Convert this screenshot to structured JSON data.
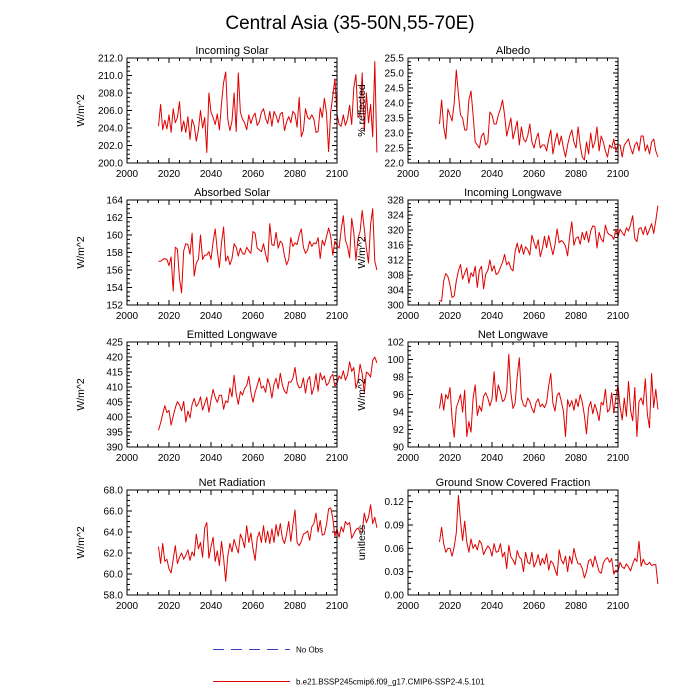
{
  "title": "Central Asia (35-50N,55-70E)",
  "legend": {
    "obs_label": "No Obs",
    "model_label": "b.e21.BSSP245cmip6.f09_g17.CMIP6-SSP2-4.5.101",
    "obs_color": "#3b3bbf",
    "model_color": "#e00000"
  },
  "chart_data": [
    {
      "type": "line",
      "name": "incoming-solar",
      "title": "Incoming Solar",
      "ylabel": "W/m^2",
      "xlim": [
        2000,
        2100
      ],
      "ylim": [
        200,
        212
      ],
      "xticks": [
        "2000",
        "2020",
        "2040",
        "2060",
        "2080",
        "2100"
      ],
      "yticks": [
        "200.0",
        "202.0",
        "204.0",
        "206.0",
        "208.0",
        "210.0",
        "212.0"
      ],
      "x_start": 2015,
      "color": "#e00000",
      "values": [
        204.2,
        206.7,
        203.8,
        204.9,
        203.9,
        205.5,
        203.5,
        206.2,
        204.6,
        205.2,
        207.0,
        203.6,
        204.8,
        203.5,
        205.3,
        202.7,
        205.0,
        204.3,
        202.5,
        203.8,
        206.0,
        204.0,
        205.2,
        201.2,
        208.0,
        205.8,
        205.2,
        204.4,
        205.6,
        203.8,
        206.8,
        209.2,
        210.4,
        205.0,
        203.7,
        204.8,
        208.0,
        203.6,
        210.3,
        205.8,
        205.0,
        204.6,
        203.8,
        205.5,
        204.5,
        205.3,
        205.7,
        204.3,
        204.7,
        205.8,
        206.2,
        205.1,
        204.5,
        205.9,
        204.2,
        205.9,
        205.4,
        204.6,
        205.6,
        205.8,
        203.7,
        204.7,
        205.3,
        204.6,
        205.9,
        205.6,
        204.1,
        207.5,
        203.0,
        203.7,
        206.2,
        205.2,
        205.0,
        205.5,
        205.0,
        203.5,
        203.6,
        206.3,
        205.2,
        207.4,
        205.7,
        201.3,
        205.8,
        207.7,
        209.6,
        205.6,
        204.4,
        204.2,
        205.5,
        204.3,
        205.0,
        206.6,
        204.4,
        208.6,
        210.1,
        205.2,
        205.5,
        210.3,
        203.6,
        208.0,
        204.6,
        206.7,
        203.0,
        211.6,
        201.2
      ]
    },
    {
      "type": "line",
      "name": "albedo",
      "title": "Albedo",
      "ylabel": "% reflected",
      "xlim": [
        2000,
        2100
      ],
      "ylim": [
        22,
        25.5
      ],
      "xticks": [
        "2000",
        "2020",
        "2040",
        "2060",
        "2080",
        "2100"
      ],
      "yticks": [
        "22.0",
        "22.5",
        "23.0",
        "23.5",
        "24.0",
        "24.5",
        "25.0",
        "25.5"
      ],
      "x_start": 2015,
      "color": "#e00000",
      "values": [
        23.3,
        24.1,
        23.2,
        22.8,
        23.8,
        23.6,
        23.4,
        24.0,
        25.1,
        24.3,
        23.6,
        23.5,
        23.1,
        23.1,
        24.1,
        24.4,
        23.6,
        22.7,
        22.6,
        22.5,
        22.9,
        23.0,
        22.6,
        22.7,
        23.7,
        23.6,
        23.3,
        23.3,
        23.6,
        23.8,
        24.1,
        23.6,
        22.9,
        23.2,
        23.5,
        22.8,
        23.1,
        23.4,
        22.6,
        23.2,
        22.8,
        22.7,
        22.9,
        23.3,
        22.7,
        22.5,
        22.8,
        23.0,
        22.5,
        22.6,
        22.6,
        22.4,
        22.8,
        23.1,
        22.3,
        22.7,
        23.0,
        22.6,
        22.9,
        22.5,
        22.2,
        22.6,
        22.9,
        23.1,
        22.7,
        22.5,
        23.2,
        22.6,
        22.2,
        22.1,
        22.7,
        22.3,
        23.0,
        22.5,
        22.7,
        23.2,
        22.4,
        22.9,
        22.7,
        22.4,
        22.2,
        22.6,
        22.5,
        22.8,
        22.4,
        22.6,
        22.6,
        22.2,
        22.6,
        22.7,
        22.8,
        22.5,
        22.3,
        22.6,
        22.7,
        22.4,
        22.9,
        22.9,
        22.4,
        22.6,
        22.3,
        22.7,
        22.8,
        22.4,
        22.2
      ]
    },
    {
      "type": "line",
      "name": "absorbed-solar",
      "title": "Absorbed Solar",
      "ylabel": "W/m^2",
      "xlim": [
        2000,
        2100
      ],
      "ylim": [
        152,
        164
      ],
      "xticks": [
        "2000",
        "2020",
        "2040",
        "2060",
        "2080",
        "2100"
      ],
      "yticks": [
        "152",
        "154",
        "156",
        "158",
        "160",
        "162",
        "164"
      ],
      "x_start": 2015,
      "color": "#e00000",
      "values": [
        157.0,
        157.0,
        157.2,
        157.3,
        157.2,
        156.5,
        157.5,
        153.6,
        158.6,
        158.4,
        155.0,
        153.4,
        158.2,
        159.0,
        158.9,
        157.8,
        160.2,
        155.3,
        156.8,
        157.2,
        160.0,
        157.2,
        157.7,
        157.7,
        158.1,
        157.2,
        159.2,
        160.7,
        158.2,
        156.3,
        159.1,
        160.9,
        157.0,
        157.6,
        156.6,
        157.3,
        159.0,
        158.6,
        157.6,
        158.5,
        157.9,
        157.8,
        158.6,
        158.2,
        157.9,
        160.4,
        160.2,
        158.5,
        158.3,
        158.1,
        159.0,
        157.8,
        156.9,
        161.3,
        158.9,
        158.8,
        160.3,
        158.5,
        159.3,
        159.0,
        157.6,
        156.6,
        157.2,
        159.7,
        158.7,
        159.1,
        158.9,
        160.0,
        160.7,
        158.6,
        157.9,
        158.3,
        159.3,
        158.7,
        159.1,
        159.0,
        159.7,
        157.3,
        159.4,
        158.8,
        159.8,
        160.8,
        159.9,
        157.7,
        159.3,
        158.8,
        158.5,
        160.6,
        162.2,
        159.4,
        158.7,
        157.4,
        161.9,
        160.3,
        157.1,
        159.6,
        160.4,
        162.8,
        160.7,
        158.5,
        156.8,
        161.2,
        163.0,
        157.0,
        156.0
      ]
    },
    {
      "type": "line",
      "name": "incoming-longwave",
      "title": "Incoming Longwave",
      "ylabel": "W/m^2",
      "xlim": [
        2000,
        2100
      ],
      "ylim": [
        300,
        328
      ],
      "xticks": [
        "2000",
        "2020",
        "2040",
        "2060",
        "2080",
        "2100"
      ],
      "yticks": [
        "300",
        "304",
        "308",
        "312",
        "316",
        "320",
        "324",
        "328"
      ],
      "x_start": 2015,
      "color": "#e00000",
      "values": [
        301.2,
        301.0,
        306.5,
        308.4,
        307.6,
        305.3,
        302.0,
        302.4,
        306.4,
        309.1,
        310.8,
        306.9,
        308.5,
        309.9,
        305.8,
        308.6,
        307.6,
        310.3,
        304.7,
        309.3,
        310.3,
        304.3,
        308.2,
        309.2,
        312.0,
        309.0,
        310.5,
        308.1,
        308.6,
        310.0,
        311.4,
        313.5,
        310.7,
        311.5,
        309.7,
        309.1,
        314.2,
        316.5,
        313.9,
        316.1,
        313.5,
        315.5,
        314.8,
        313.3,
        318.6,
        316.7,
        315.0,
        317.4,
        312.9,
        315.1,
        318.3,
        315.3,
        318.5,
        315.8,
        313.4,
        316.1,
        320.3,
        316.6,
        317.2,
        316.7,
        315.7,
        313.1,
        318.4,
        322.2,
        315.9,
        317.8,
        318.2,
        316.2,
        319.4,
        317.4,
        319.6,
        316.7,
        319.7,
        321.1,
        320.9,
        315.2,
        319.4,
        317.6,
        316.8,
        321.3,
        319.3,
        318.7,
        318.5,
        317.5,
        320.3,
        318.2,
        320.2,
        319.3,
        318.5,
        320.6,
        319.7,
        321.5,
        323.8,
        317.7,
        316.9,
        320.4,
        320.6,
        318.8,
        320.9,
        318.7,
        320.1,
        321.7,
        319.1,
        322.5,
        326.5
      ]
    },
    {
      "type": "line",
      "name": "emitted-longwave",
      "title": "Emitted Longwave",
      "ylabel": "W/m^2",
      "xlim": [
        2000,
        2100
      ],
      "ylim": [
        390,
        425
      ],
      "xticks": [
        "2000",
        "2020",
        "2040",
        "2060",
        "2080",
        "2100"
      ],
      "yticks": [
        "390",
        "395",
        "400",
        "405",
        "410",
        "415",
        "420",
        "425"
      ],
      "x_start": 2015,
      "color": "#e00000",
      "values": [
        395.6,
        398.0,
        401.0,
        403.8,
        401.5,
        402.2,
        397.3,
        400.3,
        403.1,
        405.1,
        404.0,
        402.1,
        405.2,
        398.3,
        402.0,
        399.7,
        404.2,
        406.2,
        403.5,
        404.5,
        406.7,
        402.3,
        404.5,
        406.6,
        401.6,
        405.6,
        409.2,
        406.5,
        404.9,
        407.2,
        407.3,
        402.6,
        405.4,
        404.8,
        409.7,
        406.7,
        413.9,
        407.7,
        404.2,
        408.5,
        407.3,
        409.5,
        410.5,
        413.6,
        408.3,
        404.9,
        408.2,
        410.5,
        413.1,
        409.6,
        410.3,
        408.2,
        412.8,
        410.6,
        406.3,
        410.9,
        412.9,
        409.4,
        414.6,
        410.6,
        408.6,
        407.8,
        411.7,
        411.6,
        412.9,
        416.5,
        411.4,
        409.7,
        410.0,
        413.0,
        408.0,
        412.3,
        413.5,
        407.5,
        409.8,
        414.4,
        408.6,
        414.7,
        412.4,
        413.7,
        410.5,
        411.3,
        413.4,
        414.2,
        410.3,
        411.2,
        413.7,
        412.7,
        415.4,
        412.3,
        413.9,
        418.4,
        415.2,
        416.5,
        409.6,
        412.1,
        417.6,
        414.4,
        408.1,
        415.0,
        414.4,
        413.3,
        418.9,
        420.0,
        418.0
      ]
    },
    {
      "type": "line",
      "name": "net-longwave",
      "title": "Net Longwave",
      "ylabel": "W/m^2",
      "xlim": [
        2000,
        2100
      ],
      "ylim": [
        90,
        102
      ],
      "xticks": [
        "2000",
        "2020",
        "2040",
        "2060",
        "2080",
        "2100"
      ],
      "yticks": [
        "90",
        "92",
        "94",
        "96",
        "98",
        "100",
        "102"
      ],
      "x_start": 2015,
      "color": "#e00000",
      "values": [
        94.4,
        96.1,
        94.2,
        96.0,
        95.5,
        96.8,
        93.2,
        91.1,
        94.5,
        95.2,
        96.0,
        94.0,
        96.5,
        91.2,
        92.9,
        91.7,
        95.6,
        97.1,
        93.6,
        94.7,
        94.1,
        95.8,
        96.2,
        95.6,
        94.7,
        95.5,
        98.6,
        95.2,
        97.1,
        96.3,
        95.2,
        95.4,
        96.4,
        100.6,
        96.2,
        94.4,
        95.0,
        98.0,
        100.2,
        95.6,
        94.8,
        94.6,
        95.6,
        95.2,
        94.4,
        93.9,
        95.1,
        95.5,
        94.6,
        94.9,
        94.5,
        95.1,
        97.0,
        98.4,
        95.0,
        94.1,
        95.9,
        96.2,
        95.2,
        94.1,
        91.2,
        95.4,
        94.6,
        95.3,
        94.2,
        95.5,
        94.6,
        96.0,
        95.1,
        93.6,
        91.5,
        94.5,
        95.2,
        93.8,
        94.9,
        94.1,
        93.0,
        95.1,
        94.8,
        96.6,
        94.0,
        94.3,
        96.2,
        93.9,
        95.7,
        97.1,
        94.6,
        93.1,
        95.6,
        93.5,
        97.5,
        94.2,
        93.0,
        96.8,
        91.2,
        95.2,
        95.6,
        94.8,
        97.8,
        93.7,
        92.2,
        98.4,
        94.5,
        96.6,
        94.3
      ]
    },
    {
      "type": "line",
      "name": "net-radiation",
      "title": "Net Radiation",
      "ylabel": "W/m^2",
      "xlim": [
        2000,
        2100
      ],
      "ylim": [
        58,
        68
      ],
      "xticks": [
        "2000",
        "2020",
        "2040",
        "2060",
        "2080",
        "2100"
      ],
      "yticks": [
        "58.0",
        "60.0",
        "62.0",
        "64.0",
        "66.0",
        "68.0"
      ],
      "x_start": 2015,
      "color": "#e00000",
      "values": [
        62.6,
        61.0,
        62.9,
        61.2,
        61.4,
        60.5,
        60.1,
        61.4,
        62.7,
        61.0,
        61.6,
        62.0,
        61.4,
        61.8,
        62.3,
        61.3,
        62.1,
        61.7,
        63.8,
        62.4,
        63.0,
        61.6,
        64.4,
        64.9,
        61.5,
        62.6,
        63.5,
        61.2,
        62.2,
        60.8,
        63.1,
        61.5,
        59.3,
        61.7,
        62.9,
        62.1,
        63.3,
        62.6,
        62.0,
        63.8,
        63.3,
        62.5,
        64.6,
        63.0,
        63.9,
        62.4,
        61.3,
        63.4,
        64.0,
        63.0,
        64.6,
        63.0,
        64.1,
        62.9,
        64.3,
        63.0,
        64.7,
        63.6,
        64.8,
        63.4,
        62.9,
        63.8,
        65.0,
        63.1,
        64.7,
        66.1,
        63.0,
        62.7,
        63.1,
        63.8,
        63.9,
        64.1,
        63.2,
        64.5,
        64.8,
        65.8,
        64.0,
        65.1,
        63.7,
        63.8,
        64.7,
        66.2,
        66.3,
        65.3,
        63.6,
        64.3,
        63.5,
        64.5,
        64.0,
        65.0,
        64.7,
        64.9,
        63.4,
        63.8,
        64.2,
        64.4,
        64.0,
        64.0,
        65.8,
        64.9,
        65.4,
        66.6,
        64.8,
        65.4,
        64.4
      ]
    },
    {
      "type": "line",
      "name": "ground-snow-covered-fraction",
      "title": "Ground Snow Covered Fraction",
      "ylabel": "unitless",
      "xlim": [
        2000,
        2100
      ],
      "ylim": [
        0,
        0.135
      ],
      "xticks": [
        "2000",
        "2020",
        "2040",
        "2060",
        "2080",
        "2100"
      ],
      "yticks": [
        "0.00",
        "0.03",
        "0.06",
        "0.09",
        "0.12"
      ],
      "ytick_values": [
        0,
        0.03,
        0.06,
        0.09,
        0.12
      ],
      "x_start": 2015,
      "color": "#e00000",
      "values": [
        0.068,
        0.087,
        0.066,
        0.055,
        0.06,
        0.06,
        0.05,
        0.062,
        0.08,
        0.128,
        0.095,
        0.07,
        0.095,
        0.068,
        0.055,
        0.072,
        0.06,
        0.065,
        0.058,
        0.07,
        0.066,
        0.052,
        0.058,
        0.063,
        0.06,
        0.05,
        0.066,
        0.055,
        0.056,
        0.066,
        0.049,
        0.055,
        0.034,
        0.064,
        0.049,
        0.045,
        0.039,
        0.057,
        0.049,
        0.046,
        0.03,
        0.055,
        0.042,
        0.04,
        0.055,
        0.036,
        0.042,
        0.052,
        0.038,
        0.047,
        0.04,
        0.053,
        0.032,
        0.044,
        0.041,
        0.033,
        0.025,
        0.058,
        0.045,
        0.04,
        0.05,
        0.03,
        0.05,
        0.04,
        0.06,
        0.048,
        0.04,
        0.04,
        0.034,
        0.022,
        0.03,
        0.044,
        0.046,
        0.036,
        0.05,
        0.04,
        0.03,
        0.028,
        0.041,
        0.046,
        0.048,
        0.042,
        0.047,
        0.027,
        0.032,
        0.03,
        0.042,
        0.036,
        0.034,
        0.04,
        0.036,
        0.031,
        0.04,
        0.047,
        0.043,
        0.069,
        0.037,
        0.046,
        0.04,
        0.039,
        0.042,
        0.038,
        0.039,
        0.039,
        0.014
      ]
    }
  ]
}
